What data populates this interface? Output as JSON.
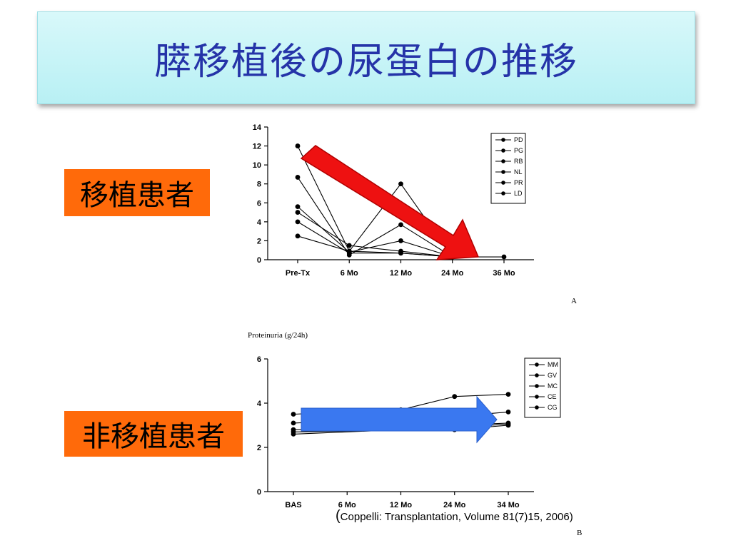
{
  "slide": {
    "title": "膵移植後の尿蛋白の推移",
    "label_transplant": "移植患者",
    "label_non_transplant": "非移植患者",
    "citation": "Coppelli: Transplantation, Volume 81(7)15, 2006)",
    "citation_open_paren": "("
  },
  "colors": {
    "title_text": "#2533a8",
    "title_bg": "#c6f4f7",
    "label_bg": "#ff6a0a",
    "red_arrow": "#ee1111",
    "blue_arrow": "#3a78f0"
  },
  "chart_data": [
    {
      "type": "line",
      "panel_label": "A",
      "ylim": [
        0,
        14
      ],
      "yticks": [
        0,
        2,
        4,
        6,
        8,
        10,
        12,
        14
      ],
      "categories": [
        "Pre-Tx",
        "6 Mo",
        "12 Mo",
        "24 Mo",
        "36 Mo"
      ],
      "legend": [
        "PD",
        "PG",
        "RB",
        "NL",
        "PR",
        "LD"
      ],
      "legend_position": "top-right",
      "series": [
        {
          "name": "PD",
          "values": [
            12.0,
            0.9,
            8.0,
            0.3,
            null
          ]
        },
        {
          "name": "PG",
          "values": [
            8.7,
            0.5,
            3.7,
            0.3,
            null
          ]
        },
        {
          "name": "RB",
          "values": [
            5.6,
            0.8,
            2.0,
            0.3,
            null
          ]
        },
        {
          "name": "NL",
          "values": [
            5.0,
            1.5,
            0.9,
            0.3,
            0.3
          ]
        },
        {
          "name": "PR",
          "values": [
            4.0,
            0.7,
            0.7,
            0.3,
            null
          ]
        },
        {
          "name": "LD",
          "values": [
            2.5,
            0.9,
            0.7,
            0.3,
            null
          ]
        }
      ],
      "overlay_arrow": "red-down"
    },
    {
      "type": "line",
      "panel_label": "B",
      "ylabel": "Proteinuria (g/24h)",
      "ylim": [
        0,
        6
      ],
      "yticks": [
        0,
        2,
        4,
        6
      ],
      "categories": [
        "BAS",
        "6 Mo",
        "12 Mo",
        "24 Mo",
        "34 Mo"
      ],
      "legend": [
        "MM",
        "GV",
        "MC",
        "CE",
        "CG"
      ],
      "legend_position": "top-right",
      "series": [
        {
          "name": "MM",
          "values": [
            3.5,
            null,
            3.7,
            4.3,
            4.4
          ]
        },
        {
          "name": "GV",
          "values": [
            3.1,
            null,
            null,
            3.4,
            3.6
          ]
        },
        {
          "name": "MC",
          "values": [
            2.8,
            null,
            null,
            3.0,
            3.1
          ]
        },
        {
          "name": "CE",
          "values": [
            2.7,
            null,
            null,
            2.8,
            3.0
          ]
        },
        {
          "name": "CG",
          "values": [
            2.6,
            null,
            null,
            2.9,
            3.05
          ]
        }
      ],
      "overlay_arrow": "blue-right"
    }
  ]
}
